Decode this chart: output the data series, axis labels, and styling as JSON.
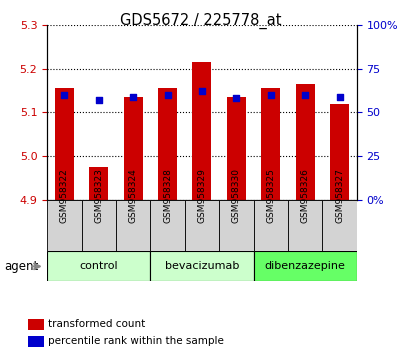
{
  "title": "GDS5672 / 225778_at",
  "samples": [
    "GSM958322",
    "GSM958323",
    "GSM958324",
    "GSM958328",
    "GSM958329",
    "GSM958330",
    "GSM958325",
    "GSM958326",
    "GSM958327"
  ],
  "red_values": [
    5.155,
    4.975,
    5.135,
    5.155,
    5.215,
    5.135,
    5.155,
    5.165,
    5.12
  ],
  "blue_values": [
    60,
    57,
    59,
    60,
    62,
    58,
    60,
    60,
    59
  ],
  "ylim_left": [
    4.9,
    5.3
  ],
  "ylim_right": [
    0,
    100
  ],
  "yticks_left": [
    4.9,
    5.0,
    5.1,
    5.2,
    5.3
  ],
  "yticks_right": [
    0,
    25,
    50,
    75,
    100
  ],
  "groups": [
    {
      "label": "control",
      "span": [
        0,
        3
      ],
      "color": "#ccffcc"
    },
    {
      "label": "bevacizumab",
      "span": [
        3,
        6
      ],
      "color": "#ccffcc"
    },
    {
      "label": "dibenzazepine",
      "span": [
        6,
        9
      ],
      "color": "#66ff66"
    }
  ],
  "bar_color": "#cc0000",
  "marker_color": "#0000cc",
  "bar_bottom": 4.9,
  "agent_label": "agent",
  "legend_items": [
    {
      "color": "#cc0000",
      "label": "transformed count"
    },
    {
      "color": "#0000cc",
      "label": "percentile rank within the sample"
    }
  ],
  "background_color": "#ffffff",
  "sample_box_color": "#d3d3d3",
  "tick_color_left": "#cc0000",
  "tick_color_right": "#0000cc"
}
